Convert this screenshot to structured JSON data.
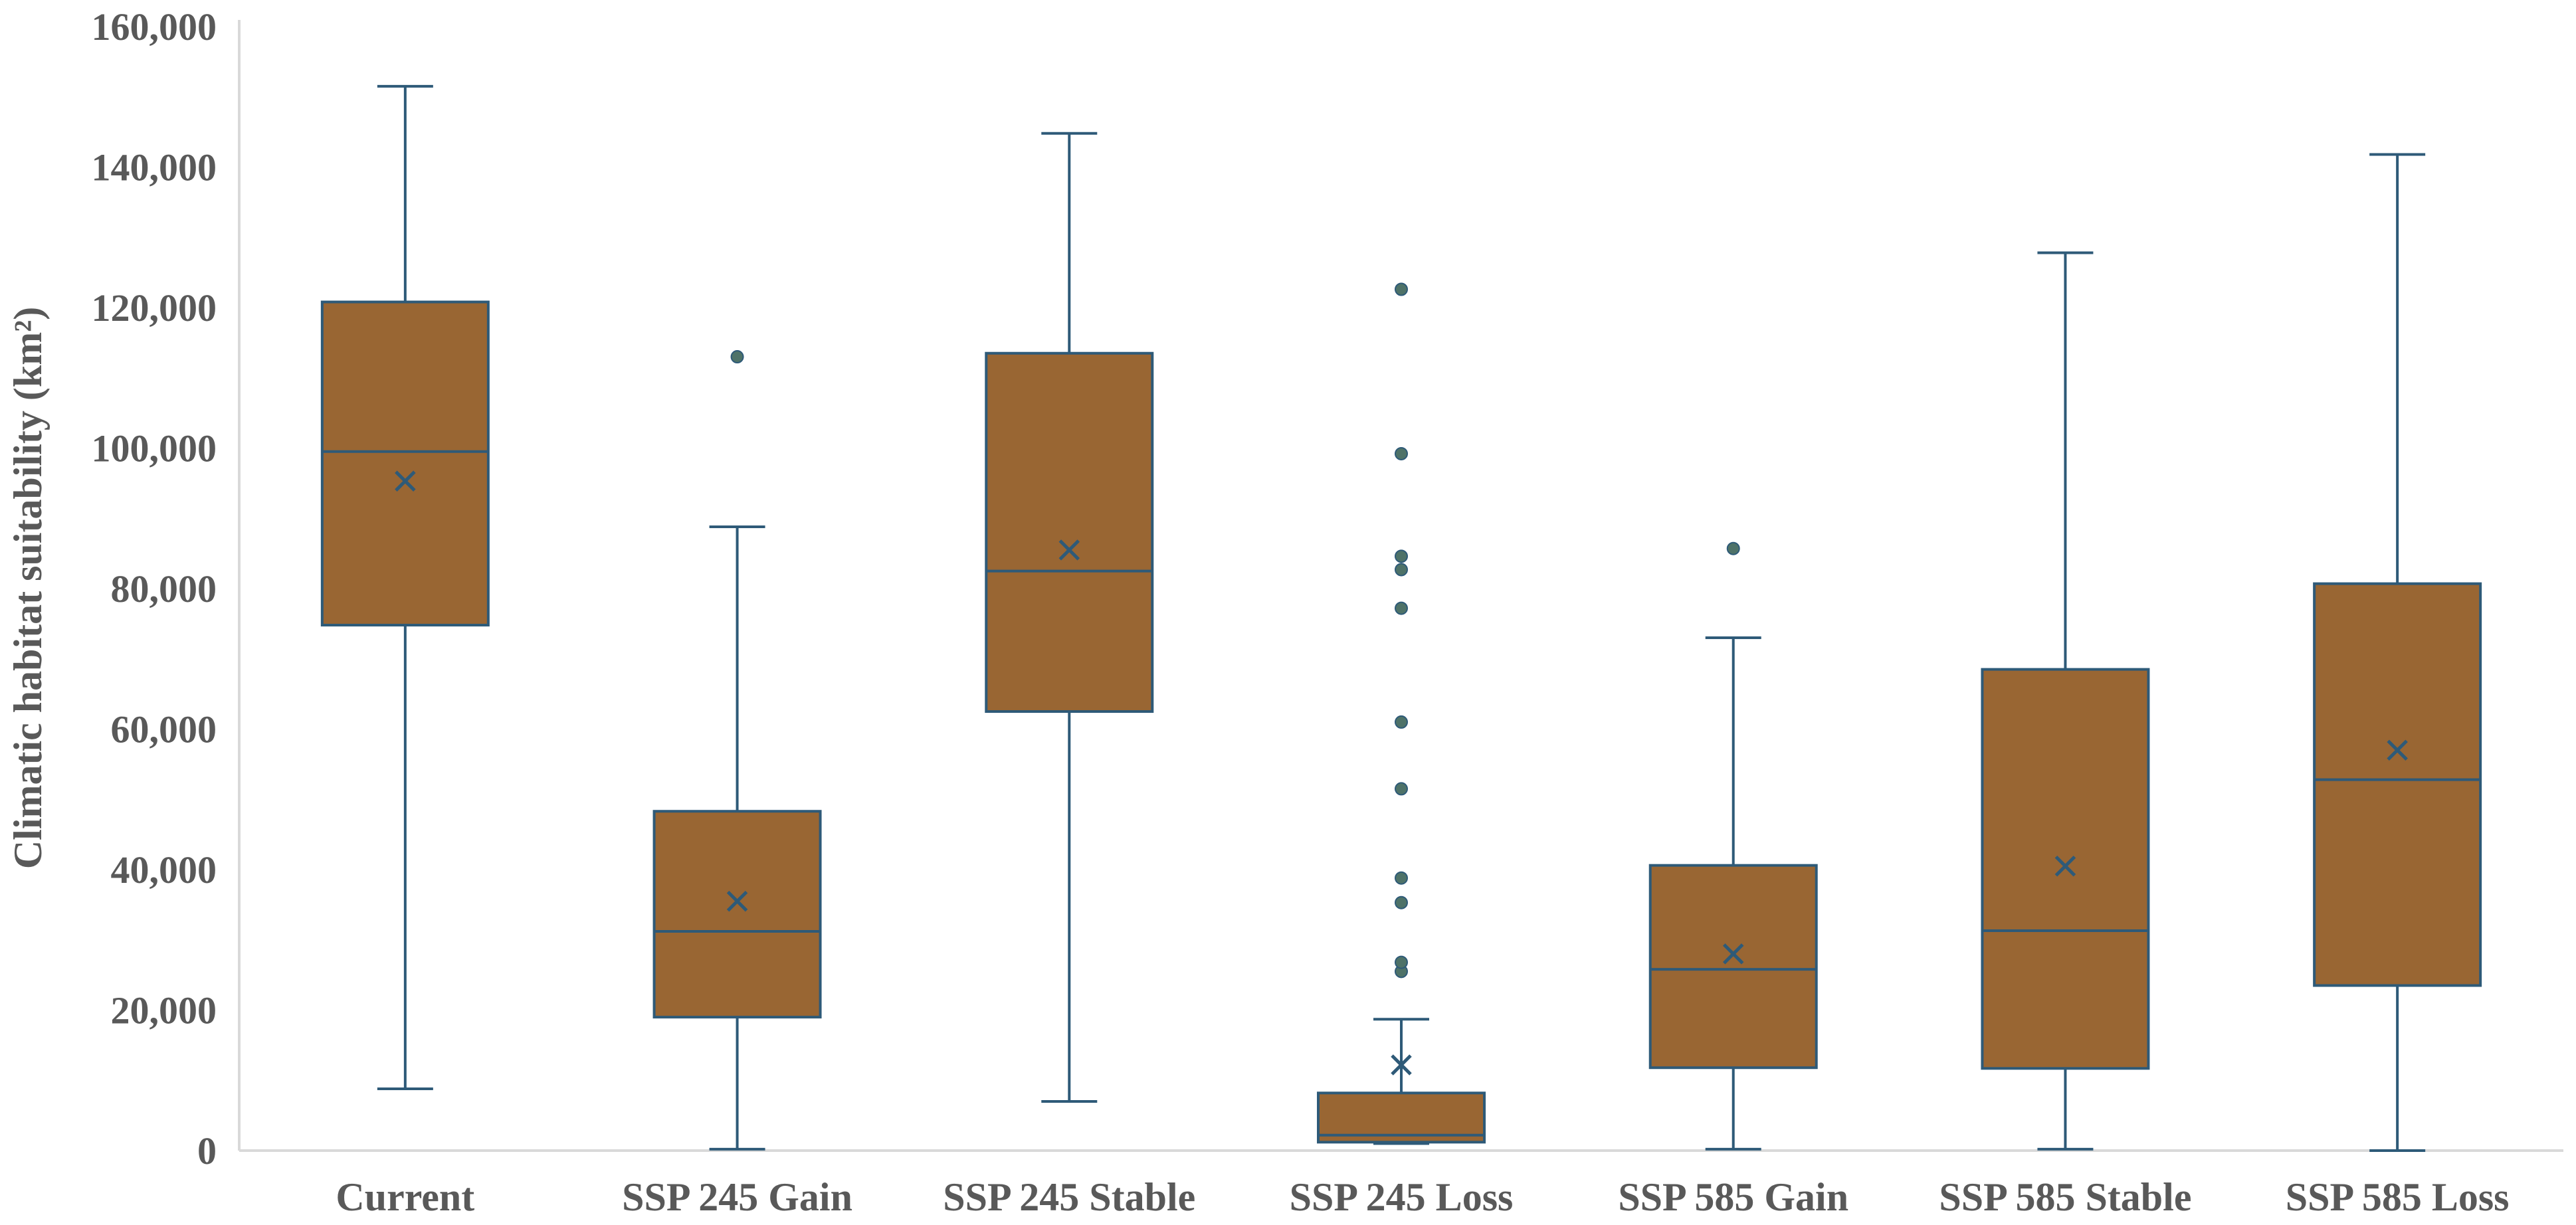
{
  "chart_data": {
    "type": "box",
    "title": "",
    "xlabel": "",
    "ylabel": "Climatic habitat suitability (km²)",
    "ylim": [
      0,
      160000
    ],
    "yticks": [
      0,
      20000,
      40000,
      60000,
      80000,
      100000,
      120000,
      140000,
      160000
    ],
    "ytick_labels": [
      "0",
      "20,000",
      "40,000",
      "60,000",
      "80,000",
      "100,000",
      "120,000",
      "140,000",
      "160,000"
    ],
    "categories": [
      "Current",
      "SSP 245 Gain",
      "SSP 245 Stable",
      "SSP 245 Loss",
      "SSP 585 Gain",
      "SSP 585 Stable",
      "SSP 585 Loss"
    ],
    "series": [
      {
        "name": "Current",
        "whisker_low": 8800,
        "q1": 74800,
        "median": 99500,
        "q3": 120800,
        "whisker_high": 151500,
        "mean": 95300,
        "outliers": []
      },
      {
        "name": "SSP 245 Gain",
        "whisker_low": 200,
        "q1": 19000,
        "median": 31200,
        "q3": 48300,
        "whisker_high": 88800,
        "mean": 35500,
        "outliers": [
          113000
        ]
      },
      {
        "name": "SSP 245 Stable",
        "whisker_low": 7000,
        "q1": 62500,
        "median": 82500,
        "q3": 113500,
        "whisker_high": 144800,
        "mean": 85500,
        "outliers": []
      },
      {
        "name": "SSP 245 Loss",
        "whisker_low": 1000,
        "q1": 1200,
        "median": 2200,
        "q3": 8200,
        "whisker_high": 18700,
        "mean": 12200,
        "outliers": [
          25500,
          26800,
          35300,
          38800,
          51500,
          61000,
          77200,
          82700,
          84600,
          99200,
          122600
        ]
      },
      {
        "name": "SSP 585 Gain",
        "whisker_low": 200,
        "q1": 11800,
        "median": 25800,
        "q3": 40600,
        "whisker_high": 73000,
        "mean": 28000,
        "outliers": [
          85700
        ]
      },
      {
        "name": "SSP 585 Stable",
        "whisker_low": 200,
        "q1": 11700,
        "median": 31300,
        "q3": 68500,
        "whisker_high": 127800,
        "mean": 40500,
        "outliers": []
      },
      {
        "name": "SSP 585 Loss",
        "whisker_low": 0,
        "q1": 23500,
        "median": 52800,
        "q3": 80700,
        "whisker_high": 141800,
        "mean": 57000,
        "outliers": []
      }
    ],
    "grid": false,
    "legend": "none",
    "colors": {
      "box_fill": "#996633",
      "line": "#2e5a78",
      "outlier_fill": "#4e7268",
      "axis": "#d9d9d9",
      "text": "#595959"
    }
  }
}
